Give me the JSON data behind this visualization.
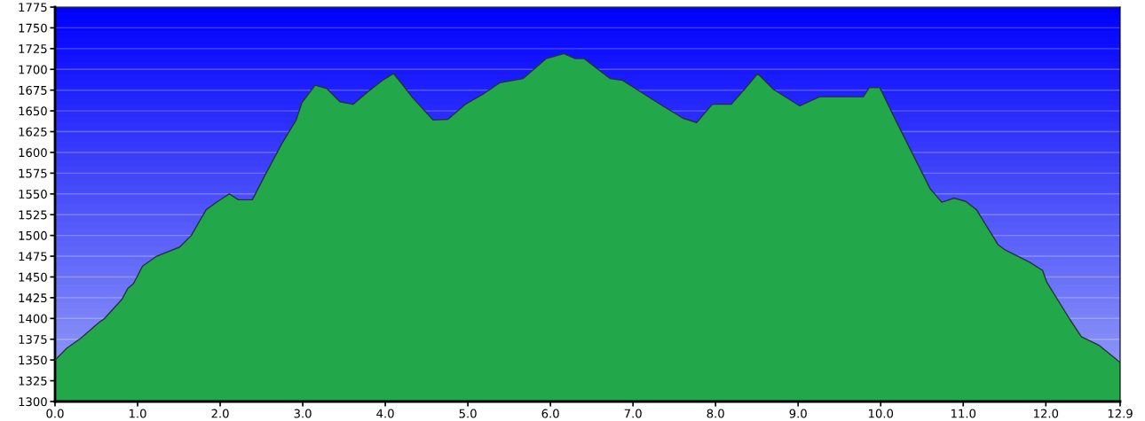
{
  "chart_data": {
    "type": "area",
    "x": [
      0,
      0.14,
      0.31,
      0.53,
      0.6,
      0.81,
      0.88,
      0.95,
      1.06,
      1.23,
      1.51,
      1.65,
      1.83,
      1.97,
      2.11,
      2.22,
      2.39,
      2.54,
      2.75,
      2.92,
      2.99,
      3.15,
      3.29,
      3.45,
      3.61,
      3.8,
      3.97,
      4.1,
      4.19,
      4.33,
      4.58,
      4.76,
      4.97,
      5.18,
      5.39,
      5.67,
      5.95,
      6.16,
      6.3,
      6.41,
      6.72,
      6.87,
      7.36,
      7.61,
      7.77,
      7.96,
      8.19,
      8.35,
      8.51,
      8.7,
      9.02,
      9.26,
      9.79,
      9.86,
      9.99,
      10.18,
      10.6,
      10.74,
      10.89,
      11.03,
      11.16,
      11.42,
      11.5,
      11.8,
      11.96,
      12.01,
      12.29,
      12.43,
      12.64,
      12.9
    ],
    "series": [
      {
        "color": "#22a84a",
        "values": [
          1350,
          1364,
          1376,
          1395,
          1400,
          1423,
          1436,
          1442,
          1463,
          1475,
          1486,
          1500,
          1531,
          1541,
          1550,
          1543,
          1543,
          1572,
          1611,
          1639,
          1660,
          1681,
          1677,
          1661,
          1658,
          1674,
          1687,
          1695,
          1684,
          1666,
          1639,
          1640,
          1658,
          1670,
          1684,
          1689,
          1713,
          1719,
          1713,
          1713,
          1689,
          1687,
          1656,
          1641,
          1636,
          1658,
          1658,
          1676,
          1695,
          1676,
          1656,
          1667,
          1667,
          1678,
          1678,
          1639,
          1556,
          1540,
          1545,
          1541,
          1531,
          1489,
          1483,
          1468,
          1458,
          1444,
          1399,
          1378,
          1368,
          1347
        ]
      }
    ],
    "xlim": [
      0,
      12.9
    ],
    "xticks": [
      {
        "value": 0,
        "label": "0.0"
      },
      {
        "value": 1,
        "label": "1.0"
      },
      {
        "value": 2,
        "label": "2.0"
      },
      {
        "value": 3,
        "label": "3.0"
      },
      {
        "value": 4,
        "label": "4.0"
      },
      {
        "value": 5,
        "label": "5.0"
      },
      {
        "value": 6,
        "label": "6.0"
      },
      {
        "value": 7,
        "label": "7.0"
      },
      {
        "value": 8,
        "label": "8.0"
      },
      {
        "value": 9,
        "label": "9.0"
      },
      {
        "value": 10,
        "label": "10.0"
      },
      {
        "value": 11,
        "label": "11.0"
      },
      {
        "value": 12,
        "label": "12.0"
      },
      12.9
    ],
    "ylim": [
      1300,
      1775
    ],
    "yticks": [
      1300,
      1325,
      1350,
      1375,
      1400,
      1425,
      1450,
      1475,
      1500,
      1525,
      1550,
      1575,
      1600,
      1625,
      1650,
      1675,
      1700,
      1725,
      1750,
      1775
    ],
    "grid": "y"
  }
}
